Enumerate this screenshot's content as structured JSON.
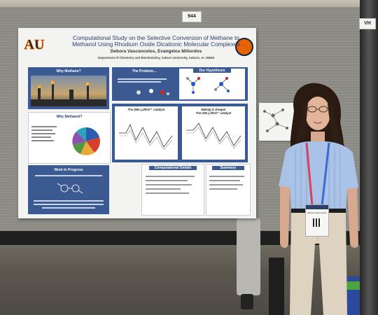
{
  "scene": {
    "board_number": "944",
    "neighbor_board_number": "VH",
    "colors": {
      "board": "#8e8c87",
      "poster_blue": "#3c5a92",
      "shirt": "#a9c2e6",
      "pants": "#ddd3c0"
    }
  },
  "poster": {
    "title_line1": "Computational Study on the Selective Conversion of Methane to",
    "title_line2": "Methanol Using Rhodium Oxide Dicationic Molecular Complexes",
    "authors": "Debora Vasconcelos, Evangelos Miliordos",
    "department": "Department of Chemistry and Biochemistry, Auburn University, Auburn, AL 36849",
    "logo_left": "AU",
    "sections": {
      "why_methane": "Why Methane?",
      "why_methanol": "Why Methanol?",
      "problem": "The Problem...",
      "hypothesis": "Our Hypothesis",
      "catalyst1": "The (NH₃)₄RhO²⁺ catalyst",
      "catalyst2_line1": "Making it cheaper",
      "catalyst2_line2": "The (NH₃)₄RhO²⁺ catalyst",
      "work_in_progress": "Work In Progress",
      "computational_details": "Computational Details",
      "summary": "Summary"
    },
    "pie_colors": [
      "#2a5db0",
      "#d6402b",
      "#e9a93a",
      "#4f9a3e",
      "#8d4fb0",
      "#2ba3b8"
    ]
  },
  "badge": {
    "label": "Debora Vasconcelos"
  }
}
